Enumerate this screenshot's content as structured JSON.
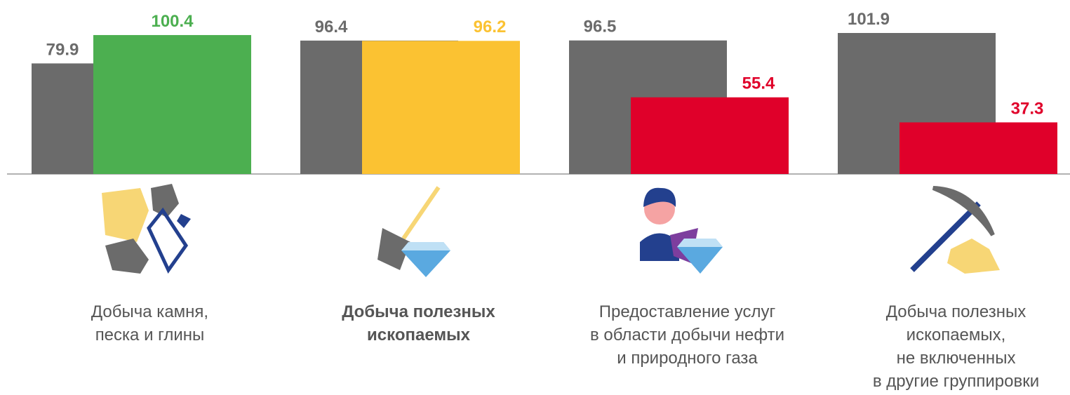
{
  "chart_data": {
    "type": "bar",
    "categories": [
      "Добыча камня,\nпеска и глины",
      "Добыча полезных\nископаемых",
      "Предоставление услуг\nв области добычи нефти\nи природного газа",
      "Добыча полезных\nископаемых,\nне включенных\nв другие группировки"
    ],
    "bold_category": 1,
    "series": [
      {
        "color": "#6b6b6b",
        "values": [
          79.9,
          96.4,
          96.5,
          101.9
        ]
      },
      {
        "colors": [
          "#4caf50",
          "#fbc232",
          "#e0002a",
          "#e0002a"
        ],
        "values": [
          100.4,
          96.2,
          55.4,
          37.3
        ]
      }
    ]
  }
}
